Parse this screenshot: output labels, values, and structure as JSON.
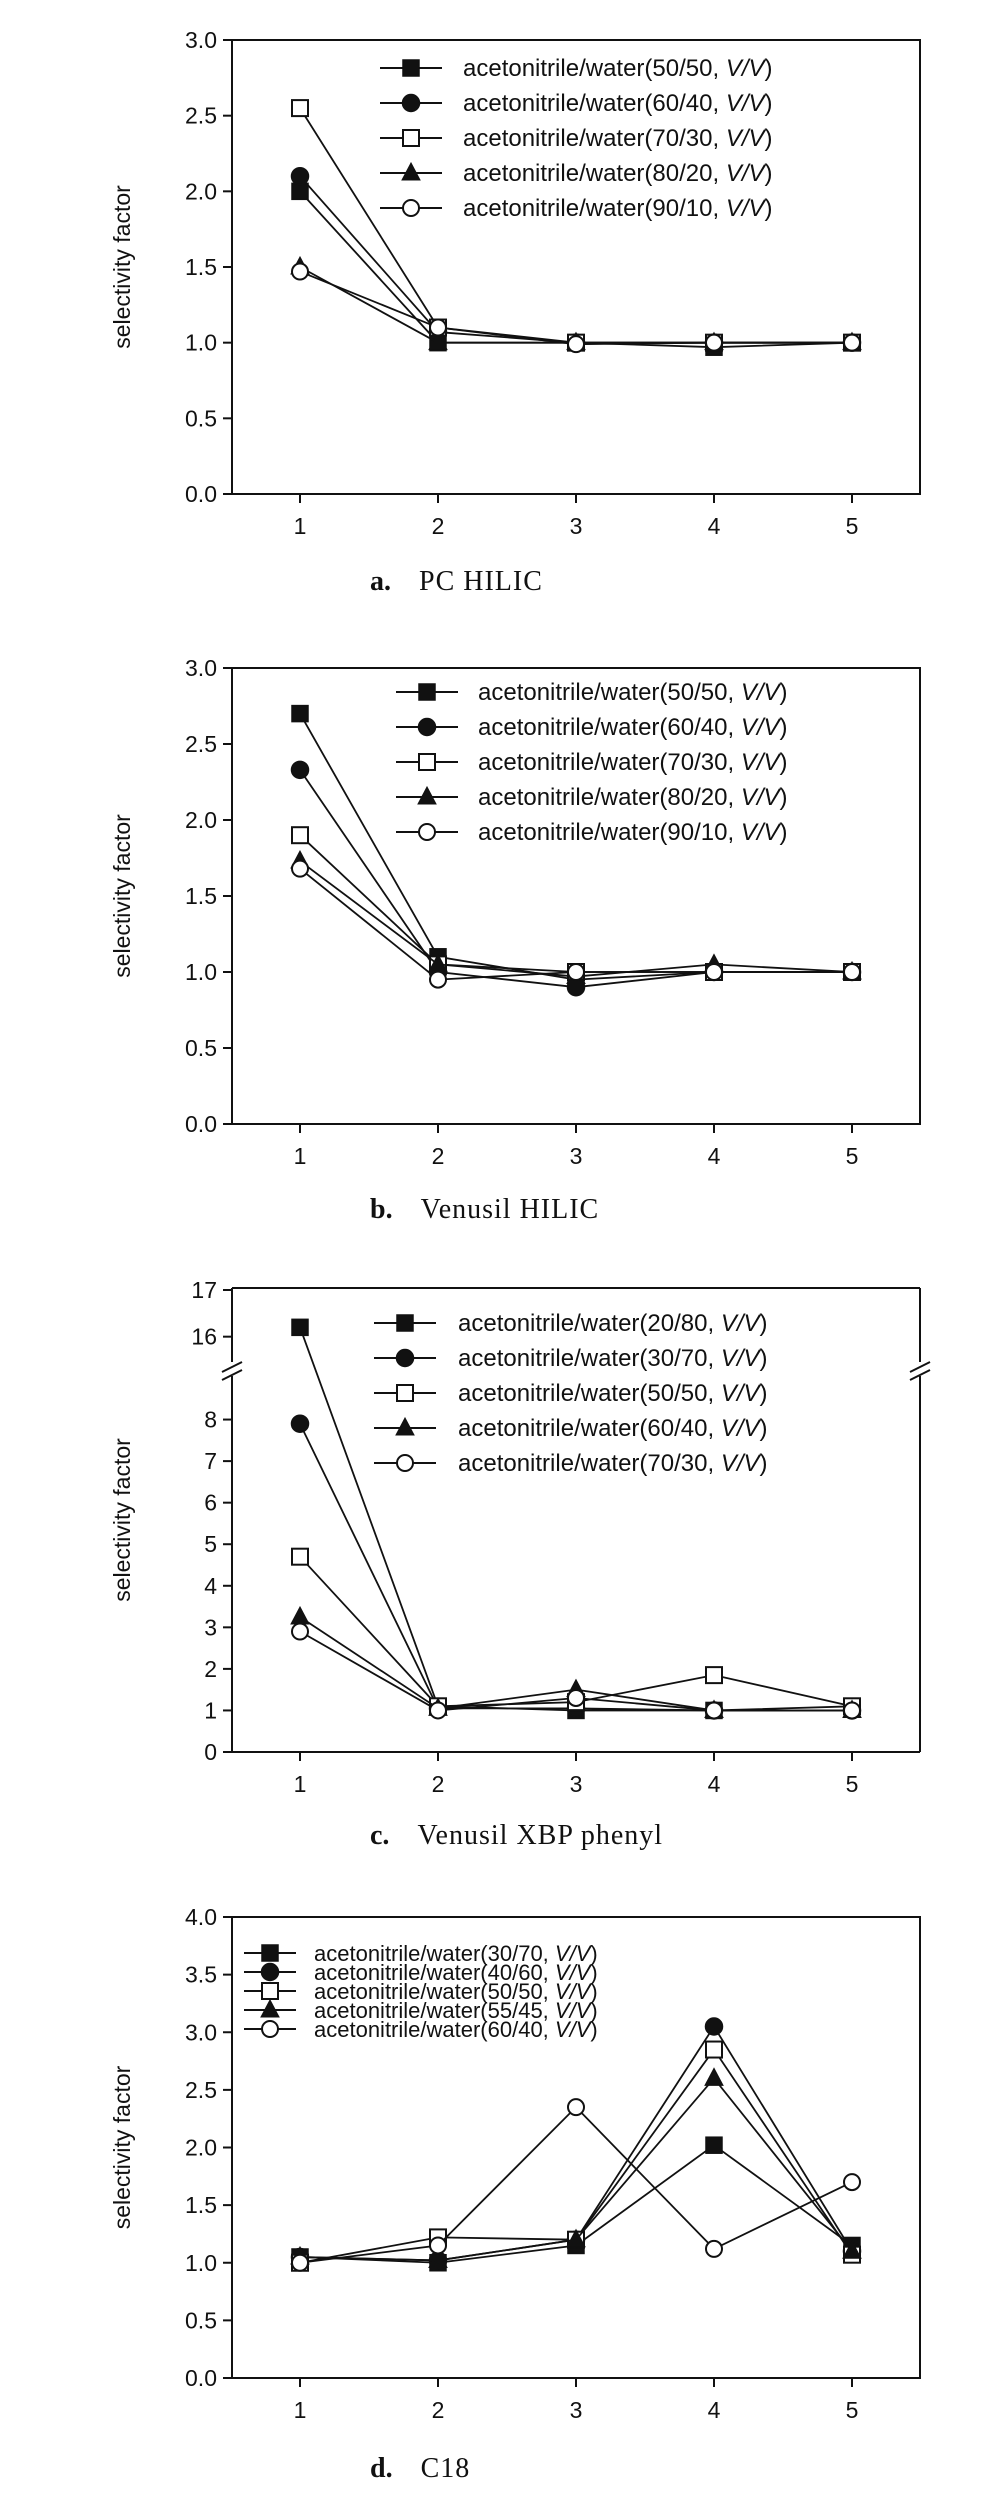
{
  "chart_data": [
    {
      "type": "line",
      "panel_letter": "a.",
      "caption": "PC HILIC",
      "ylabel": "selectivity factor",
      "xlabel": "",
      "x": [
        1,
        2,
        3,
        4,
        5
      ],
      "ylim": [
        0,
        3.0
      ],
      "yticks": [
        "0.0",
        "0.5",
        "1.0",
        "1.5",
        "2.0",
        "2.5",
        "3.0"
      ],
      "ytick_values": [
        0,
        0.5,
        1.0,
        1.5,
        2.0,
        2.5,
        3.0
      ],
      "grid": false,
      "legend_position": "top-right",
      "series": [
        {
          "name": "acetonitrile/water(50/50, ",
          "name_italic": "V/V",
          "name_end": ")",
          "marker": "square-filled",
          "values": [
            2.0,
            1.0,
            1.0,
            0.97,
            1.0
          ]
        },
        {
          "name": "acetonitrile/water(60/40, ",
          "name_italic": "V/V",
          "name_end": ")",
          "marker": "circle-filled",
          "values": [
            2.1,
            1.07,
            1.0,
            1.0,
            1.0
          ]
        },
        {
          "name": "acetonitrile/water(70/30, ",
          "name_italic": "V/V",
          "name_end": ")",
          "marker": "square-open",
          "values": [
            2.55,
            1.1,
            1.0,
            1.0,
            1.0
          ]
        },
        {
          "name": "acetonitrile/water(80/20, ",
          "name_italic": "V/V",
          "name_end": ")",
          "marker": "triangle-filled",
          "values": [
            1.5,
            1.0,
            1.0,
            1.0,
            1.0
          ]
        },
        {
          "name": "acetonitrile/water(90/10, ",
          "name_italic": "V/V",
          "name_end": ")",
          "marker": "circle-open",
          "values": [
            1.47,
            1.1,
            0.99,
            1.0,
            1.0
          ]
        }
      ]
    },
    {
      "type": "line",
      "panel_letter": "b.",
      "caption": "Venusil HILIC",
      "ylabel": "selectivity factor",
      "xlabel": "",
      "x": [
        1,
        2,
        3,
        4,
        5
      ],
      "ylim": [
        0,
        3.0
      ],
      "yticks": [
        "0.0",
        "0.5",
        "1.0",
        "1.5",
        "2.0",
        "2.5",
        "3.0"
      ],
      "ytick_values": [
        0,
        0.5,
        1.0,
        1.5,
        2.0,
        2.5,
        3.0
      ],
      "grid": false,
      "legend_position": "top-right",
      "series": [
        {
          "name": "acetonitrile/water(50/50, ",
          "name_italic": "V/V",
          "name_end": ")",
          "marker": "square-filled",
          "values": [
            2.7,
            1.1,
            0.95,
            1.0,
            1.0
          ]
        },
        {
          "name": "acetonitrile/water(60/40, ",
          "name_italic": "V/V",
          "name_end": ")",
          "marker": "circle-filled",
          "values": [
            2.33,
            1.0,
            0.9,
            1.0,
            1.0
          ]
        },
        {
          "name": "acetonitrile/water(70/30, ",
          "name_italic": "V/V",
          "name_end": ")",
          "marker": "square-open",
          "values": [
            1.9,
            1.05,
            1.0,
            1.0,
            1.0
          ]
        },
        {
          "name": "acetonitrile/water(80/20, ",
          "name_italic": "V/V",
          "name_end": ")",
          "marker": "triangle-filled",
          "values": [
            1.73,
            1.05,
            0.97,
            1.05,
            1.0
          ]
        },
        {
          "name": "acetonitrile/water(90/10, ",
          "name_italic": "V/V",
          "name_end": ")",
          "marker": "circle-open",
          "values": [
            1.68,
            0.95,
            1.0,
            1.0,
            1.0
          ]
        }
      ]
    },
    {
      "type": "line",
      "panel_letter": "c.",
      "caption": "Venusil XBP phenyl",
      "ylabel": "selectivity factor",
      "xlabel": "",
      "x": [
        1,
        2,
        3,
        4,
        5
      ],
      "axis_break": true,
      "ylim_lower": [
        0,
        9
      ],
      "ylim_upper": [
        15.5,
        17
      ],
      "yticks_lower": [
        "0",
        "1",
        "2",
        "3",
        "4",
        "5",
        "6",
        "7",
        "8"
      ],
      "ytick_values_lower": [
        0,
        1,
        2,
        3,
        4,
        5,
        6,
        7,
        8
      ],
      "yticks_upper": [
        "16",
        "17"
      ],
      "ytick_values_upper": [
        16,
        17
      ],
      "grid": false,
      "legend_position": "top-right",
      "series": [
        {
          "name": "acetonitrile/water(20/80, ",
          "name_italic": "V/V",
          "name_end": ")",
          "marker": "square-filled",
          "values": [
            16.2,
            1.1,
            1.0,
            1.0,
            1.1
          ]
        },
        {
          "name": "acetonitrile/water(30/70, ",
          "name_italic": "V/V",
          "name_end": ")",
          "marker": "circle-filled",
          "values": [
            7.9,
            1.05,
            1.05,
            1.0,
            1.0
          ]
        },
        {
          "name": "acetonitrile/water(50/50, ",
          "name_italic": "V/V",
          "name_end": ")",
          "marker": "square-open",
          "values": [
            4.7,
            1.1,
            1.2,
            1.85,
            1.1
          ]
        },
        {
          "name": "acetonitrile/water(60/40, ",
          "name_italic": "V/V",
          "name_end": ")",
          "marker": "triangle-filled",
          "values": [
            3.25,
            1.05,
            1.5,
            1.0,
            1.0
          ]
        },
        {
          "name": "acetonitrile/water(70/30, ",
          "name_italic": "V/V",
          "name_end": ")",
          "marker": "circle-open",
          "values": [
            2.9,
            1.0,
            1.3,
            1.0,
            1.0
          ]
        }
      ]
    },
    {
      "type": "line",
      "panel_letter": "d.",
      "caption": "C18",
      "ylabel": "selectivity factor",
      "xlabel": "",
      "x": [
        1,
        2,
        3,
        4,
        5
      ],
      "ylim": [
        0,
        4.0
      ],
      "yticks": [
        "0.0",
        "0.5",
        "1.0",
        "1.5",
        "2.0",
        "2.5",
        "3.0",
        "3.5",
        "4.0"
      ],
      "ytick_values": [
        0,
        0.5,
        1.0,
        1.5,
        2.0,
        2.5,
        3.0,
        3.5,
        4.0
      ],
      "grid": false,
      "legend_position": "top-left",
      "series": [
        {
          "name": "acetonitrile/water(30/70, ",
          "name_italic": "V/V",
          "name_end": ")",
          "marker": "square-filled",
          "values": [
            1.05,
            1.0,
            1.15,
            2.02,
            1.15
          ]
        },
        {
          "name": "acetonitrile/water(40/60, ",
          "name_italic": "V/V",
          "name_end": ")",
          "marker": "circle-filled",
          "values": [
            1.05,
            1.02,
            1.2,
            3.05,
            1.1
          ]
        },
        {
          "name": "acetonitrile/water(50/50, ",
          "name_italic": "V/V",
          "name_end": ")",
          "marker": "square-open",
          "values": [
            1.0,
            1.22,
            1.2,
            2.85,
            1.07
          ]
        },
        {
          "name": "acetonitrile/water(55/45, ",
          "name_italic": "V/V",
          "name_end": ")",
          "marker": "triangle-filled",
          "values": [
            1.05,
            1.02,
            1.2,
            2.6,
            1.1
          ]
        },
        {
          "name": "acetonitrile/water(60/40, ",
          "name_italic": "V/V",
          "name_end": ")",
          "marker": "circle-open",
          "values": [
            1.0,
            1.15,
            2.35,
            1.12,
            1.7
          ]
        }
      ]
    }
  ]
}
